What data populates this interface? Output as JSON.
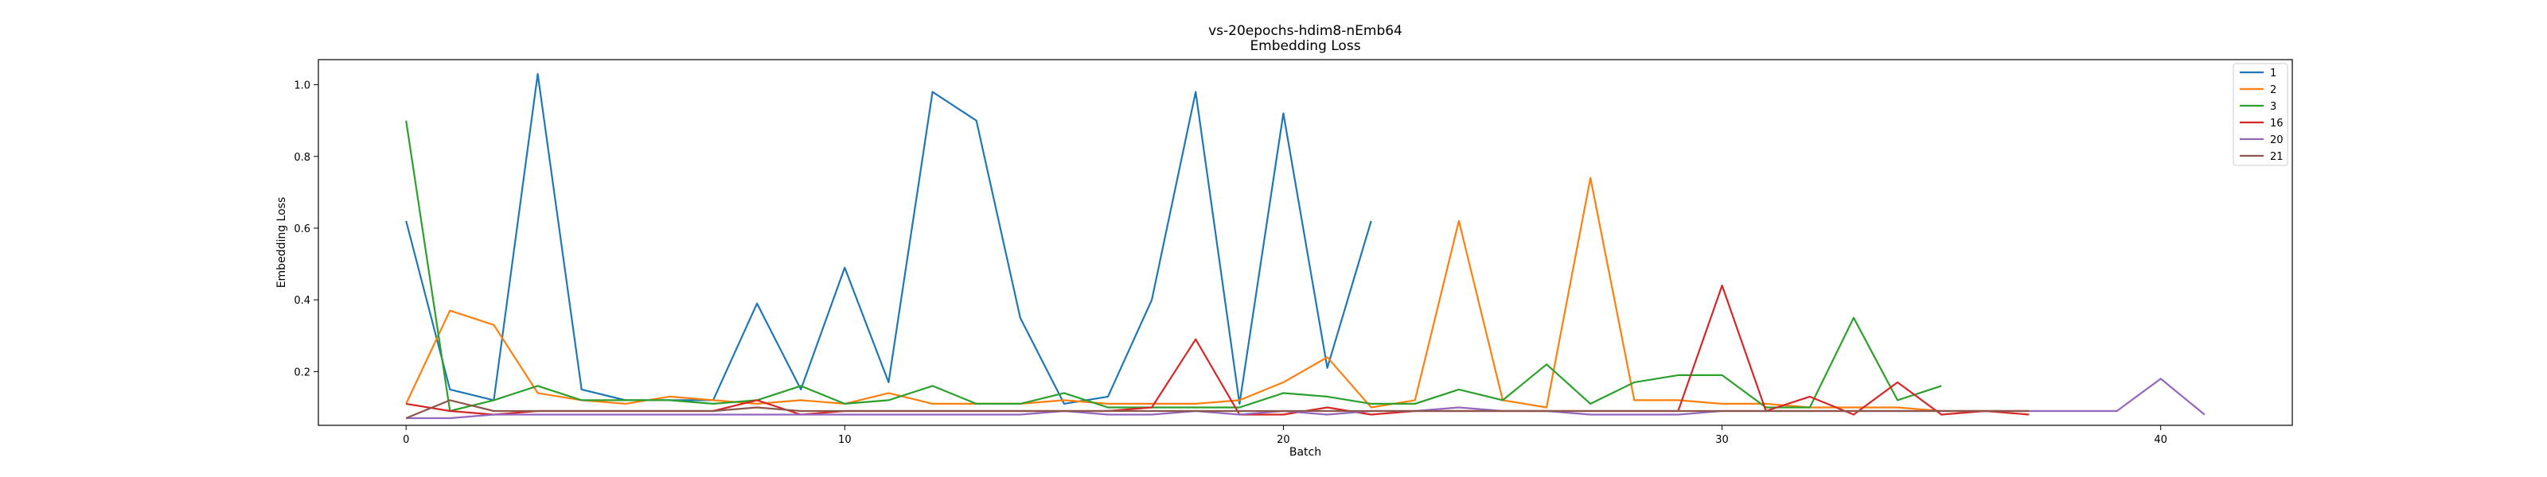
{
  "chart_data": {
    "type": "line",
    "title": "vs-20epochs-hdim8-nEmb64",
    "subtitle": "Embedding Loss",
    "xlabel": "Batch",
    "ylabel": "Embedding Loss",
    "xlim": [
      -2,
      43
    ],
    "ylim": [
      0.05,
      1.07
    ],
    "xticks": [
      0,
      10,
      20,
      30,
      40
    ],
    "yticks": [
      0.2,
      0.4,
      0.6,
      0.8,
      1.0
    ],
    "xtick_labels": [
      "0",
      "10",
      "20",
      "30",
      "40"
    ],
    "ytick_labels": [
      "0.2",
      "0.4",
      "0.6",
      "0.8",
      "1.0"
    ],
    "grid": false,
    "legend_position": "top-right",
    "series": [
      {
        "name": "1",
        "color": "#1f77b4",
        "x": [
          0,
          1,
          2,
          3,
          4,
          5,
          6,
          7,
          8,
          9,
          10,
          11,
          12,
          13,
          14,
          15,
          16,
          17,
          18,
          19,
          20,
          21,
          22
        ],
        "y": [
          0.62,
          0.15,
          0.12,
          1.03,
          0.15,
          0.12,
          0.12,
          0.12,
          0.39,
          0.15,
          0.49,
          0.17,
          0.98,
          0.9,
          0.35,
          0.11,
          0.13,
          0.4,
          0.98,
          0.11,
          0.92,
          0.21,
          0.62
        ]
      },
      {
        "name": "2",
        "color": "#ff7f0e",
        "x": [
          0,
          1,
          2,
          3,
          4,
          5,
          6,
          7,
          8,
          9,
          10,
          11,
          12,
          13,
          14,
          15,
          16,
          17,
          18,
          19,
          20,
          21,
          22,
          23,
          24,
          25,
          26,
          27,
          28,
          29,
          30,
          31,
          32,
          33,
          34,
          35,
          36,
          37
        ],
        "y": [
          0.11,
          0.37,
          0.33,
          0.14,
          0.12,
          0.11,
          0.13,
          0.12,
          0.11,
          0.12,
          0.11,
          0.14,
          0.11,
          0.11,
          0.11,
          0.12,
          0.11,
          0.11,
          0.11,
          0.12,
          0.17,
          0.24,
          0.1,
          0.12,
          0.62,
          0.12,
          0.1,
          0.74,
          0.12,
          0.12,
          0.11,
          0.11,
          0.1,
          0.1,
          0.1,
          0.09,
          0.09,
          0.09
        ]
      },
      {
        "name": "3",
        "color": "#2ca02c",
        "x": [
          0,
          1,
          2,
          3,
          4,
          5,
          6,
          7,
          8,
          9,
          10,
          11,
          12,
          13,
          14,
          15,
          16,
          17,
          18,
          19,
          20,
          21,
          22,
          23,
          24,
          25,
          26,
          27,
          28,
          29,
          30,
          31,
          32,
          33,
          34,
          35
        ],
        "y": [
          0.9,
          0.09,
          0.12,
          0.16,
          0.12,
          0.12,
          0.12,
          0.11,
          0.12,
          0.16,
          0.11,
          0.12,
          0.16,
          0.11,
          0.11,
          0.14,
          0.1,
          0.1,
          0.1,
          0.1,
          0.14,
          0.13,
          0.11,
          0.11,
          0.15,
          0.12,
          0.22,
          0.11,
          0.17,
          0.19,
          0.19,
          0.1,
          0.1,
          0.35,
          0.12,
          0.16
        ]
      },
      {
        "name": "16",
        "color": "#d62728",
        "x": [
          0,
          1,
          2,
          3,
          4,
          5,
          6,
          7,
          8,
          9,
          10,
          11,
          12,
          13,
          14,
          15,
          16,
          17,
          18,
          19,
          20,
          21,
          22,
          23,
          24,
          25,
          26,
          27,
          28,
          29,
          30,
          31,
          32,
          33,
          34,
          35,
          36,
          37
        ],
        "y": [
          0.11,
          0.09,
          0.08,
          0.09,
          0.09,
          0.09,
          0.09,
          0.09,
          0.12,
          0.08,
          0.09,
          0.09,
          0.09,
          0.09,
          0.09,
          0.09,
          0.09,
          0.1,
          0.29,
          0.08,
          0.08,
          0.1,
          0.08,
          0.09,
          0.09,
          0.09,
          0.09,
          0.09,
          0.09,
          0.09,
          0.44,
          0.09,
          0.13,
          0.08,
          0.17,
          0.08,
          0.09,
          0.08
        ]
      },
      {
        "name": "20",
        "color": "#9467bd",
        "x": [
          0,
          1,
          2,
          3,
          4,
          5,
          6,
          7,
          8,
          9,
          10,
          11,
          12,
          13,
          14,
          15,
          16,
          17,
          18,
          19,
          20,
          21,
          22,
          23,
          24,
          25,
          26,
          27,
          28,
          29,
          30,
          31,
          32,
          33,
          34,
          35,
          36,
          37,
          38,
          39,
          40,
          41
        ],
        "y": [
          0.07,
          0.07,
          0.08,
          0.08,
          0.08,
          0.08,
          0.08,
          0.08,
          0.08,
          0.08,
          0.08,
          0.08,
          0.08,
          0.08,
          0.08,
          0.09,
          0.08,
          0.08,
          0.09,
          0.08,
          0.09,
          0.08,
          0.09,
          0.09,
          0.1,
          0.09,
          0.09,
          0.08,
          0.08,
          0.08,
          0.09,
          0.09,
          0.09,
          0.09,
          0.09,
          0.09,
          0.09,
          0.09,
          0.09,
          0.09,
          0.18,
          0.08
        ]
      },
      {
        "name": "21",
        "color": "#8c564b",
        "x": [
          0,
          1,
          2,
          3,
          4,
          5,
          6,
          7,
          8,
          9,
          10,
          11,
          12,
          13,
          14,
          15,
          16,
          17,
          18,
          19,
          20,
          21,
          22,
          23,
          24,
          25,
          26,
          27,
          28,
          29,
          30,
          31,
          32,
          33,
          34,
          35,
          36,
          37
        ],
        "y": [
          0.07,
          0.12,
          0.09,
          0.09,
          0.09,
          0.09,
          0.09,
          0.09,
          0.1,
          0.09,
          0.09,
          0.09,
          0.09,
          0.09,
          0.09,
          0.09,
          0.09,
          0.09,
          0.09,
          0.09,
          0.09,
          0.09,
          0.09,
          0.09,
          0.09,
          0.09,
          0.09,
          0.09,
          0.09,
          0.09,
          0.09,
          0.09,
          0.09,
          0.09,
          0.09,
          0.09,
          0.09,
          0.09
        ]
      }
    ]
  }
}
